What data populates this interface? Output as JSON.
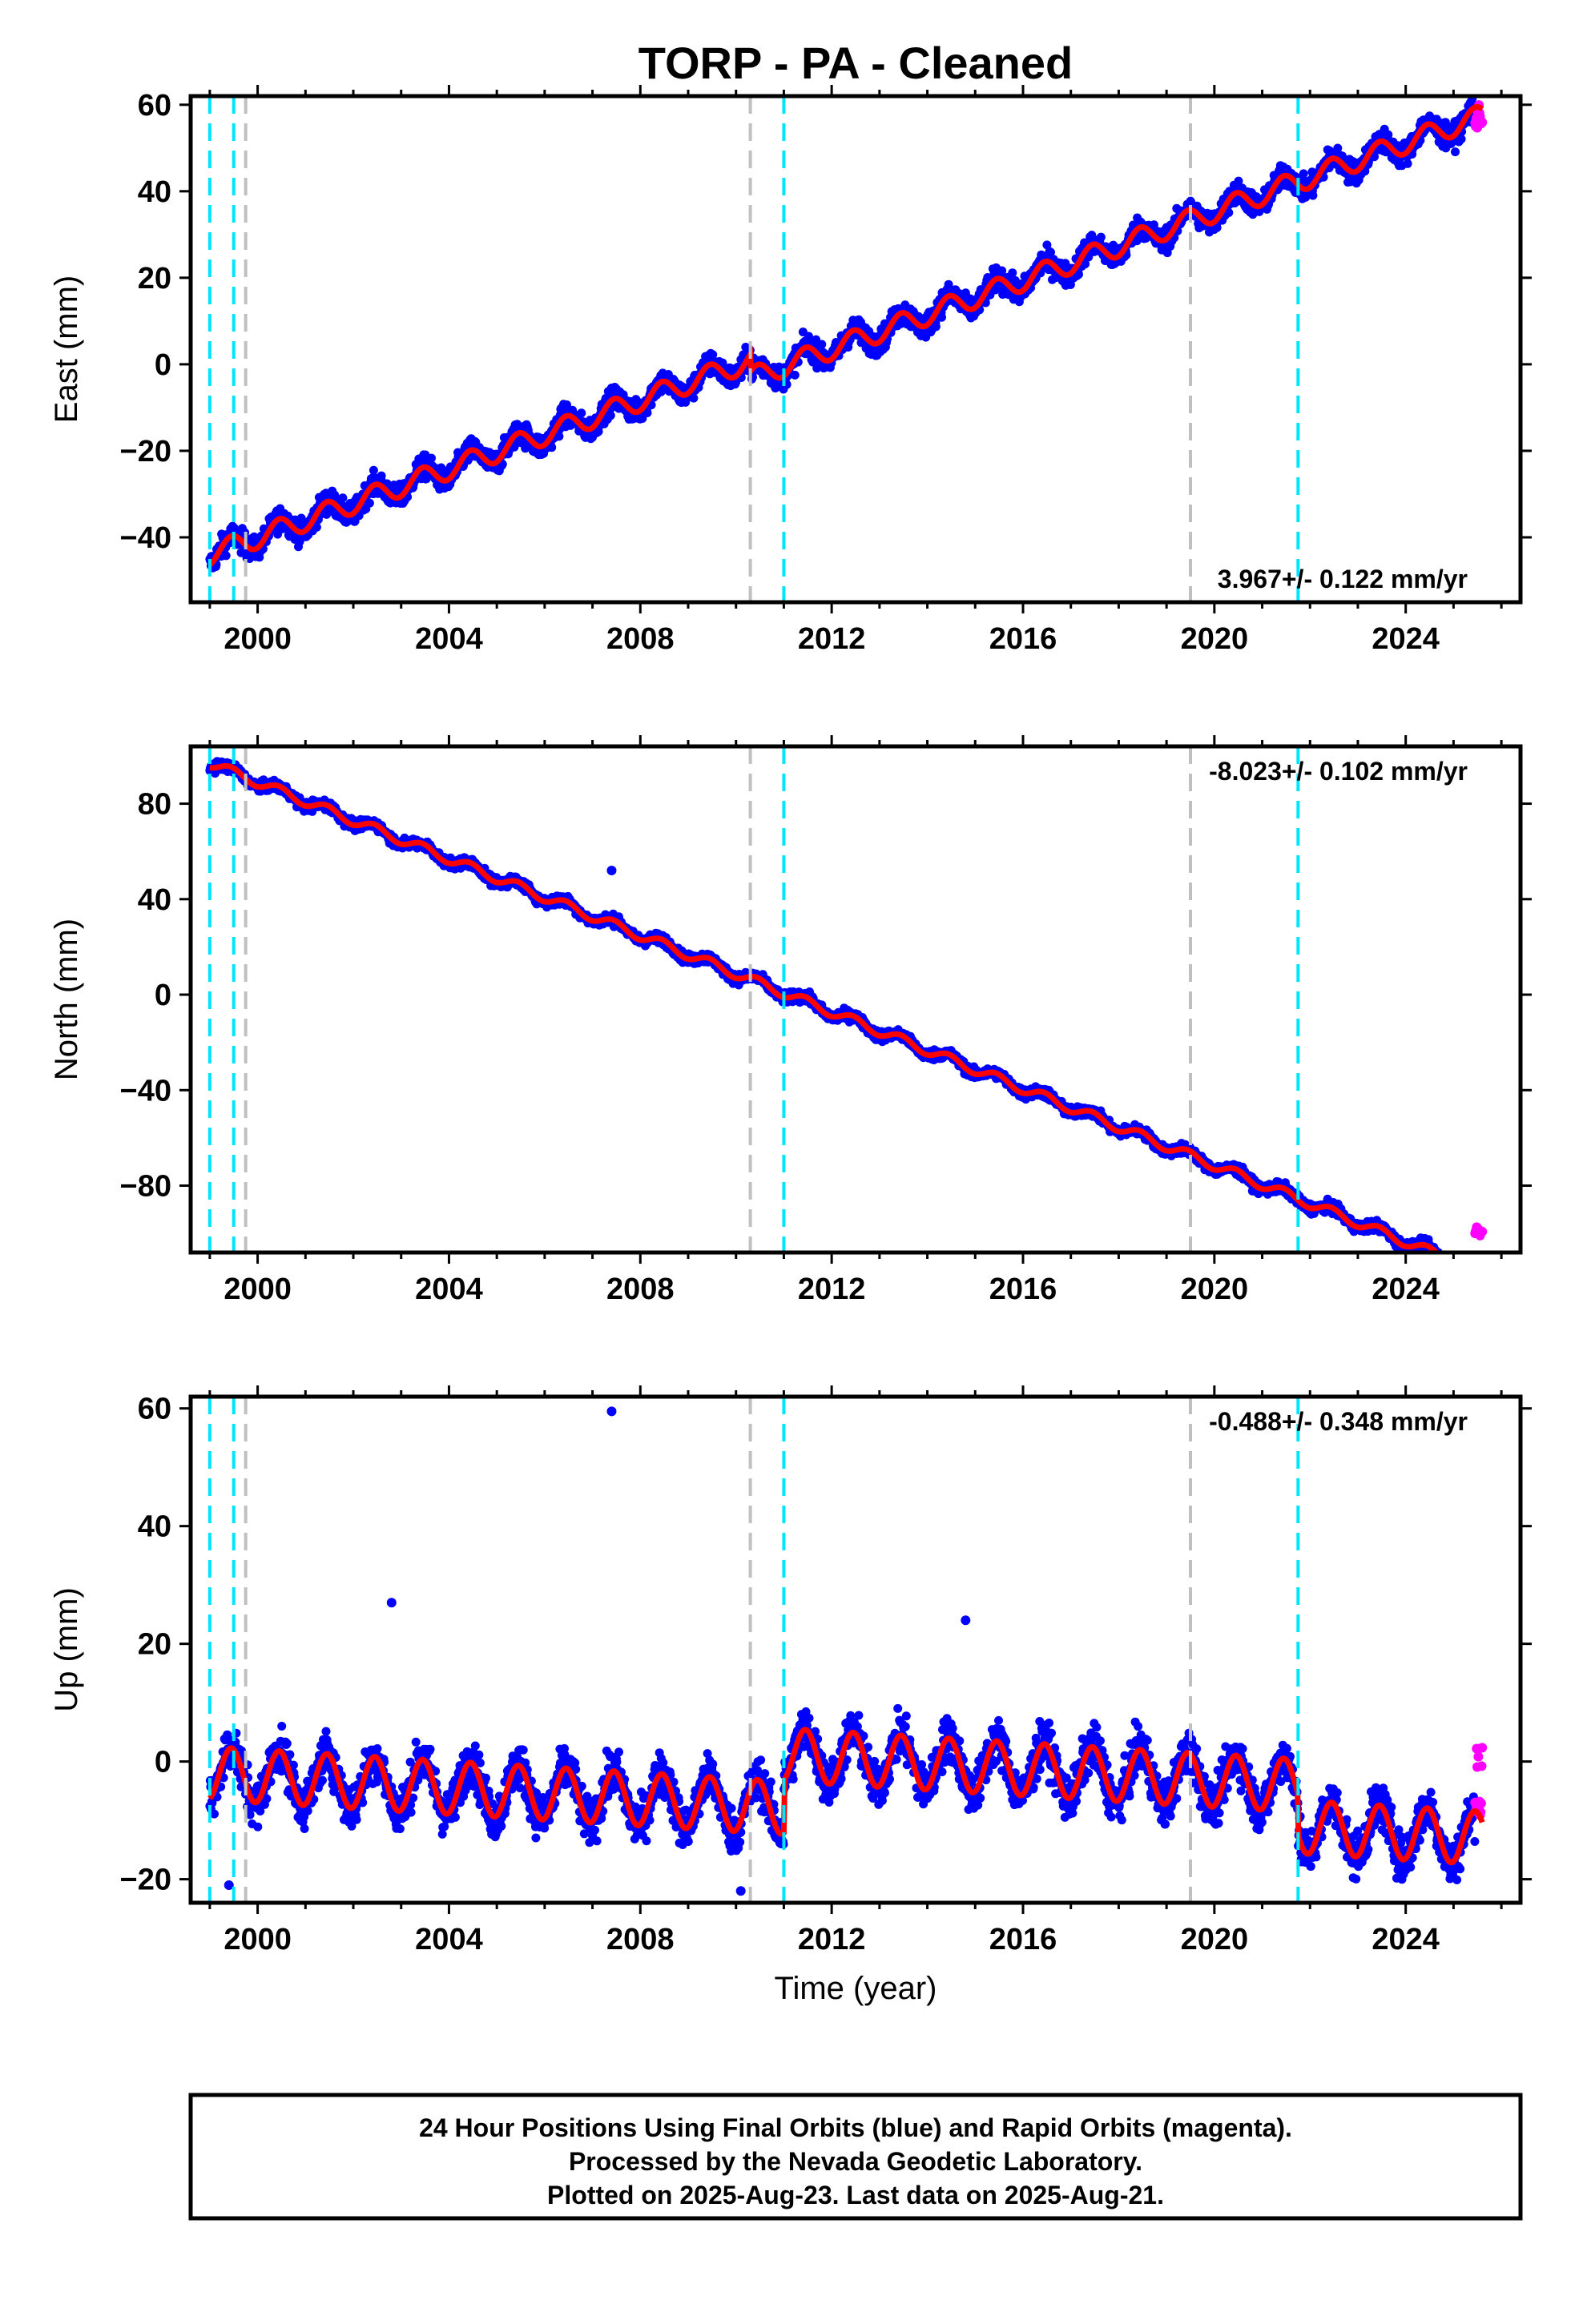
{
  "title": "TORP  - PA - Cleaned",
  "footer": {
    "line1": "24 Hour Positions Using Final Orbits (blue) and Rapid Orbits (magenta).",
    "line2": "Processed by the Nevada Geodetic Laboratory.",
    "line3": "Plotted on 2025-Aug-23. Last data on 2025-Aug-21."
  },
  "colors": {
    "final_orbits": "#0000ff",
    "rapid_orbits": "#ff00ff",
    "model": "#ff0000",
    "equipment_change": "#00e5ff",
    "other_event": "#c0c0c0"
  },
  "chart_data": [
    {
      "type": "scatter",
      "component": "east",
      "ylabel": "East (mm)",
      "xlabel": "",
      "xlim": [
        1998.6,
        2026.4
      ],
      "ylim": [
        -55,
        62
      ],
      "xticks": [
        2000,
        2004,
        2008,
        2012,
        2016,
        2020,
        2024
      ],
      "yticks": [
        -40,
        -20,
        0,
        20,
        40,
        60
      ],
      "rate_text": "3.967+/- 0.122 mm/yr",
      "rate_position": "bottom-right",
      "rate_mm_per_yr": 3.967,
      "start_value": -44,
      "seasonal_amplitude": 2.5,
      "scatter_spread": 3.2,
      "offsets": [
        {
          "year": 2010.3,
          "value": -4
        }
      ],
      "event_lines": {
        "cyan": [
          1999.0,
          1999.5,
          2011.0,
          2021.75
        ],
        "gray": [
          1999.75,
          2010.3,
          2019.5
        ]
      },
      "data_range": [
        1999.0,
        2025.6
      ],
      "rapid_range": [
        2025.45,
        2025.6
      ],
      "rapid_values": [
        54,
        60
      ],
      "outliers": []
    },
    {
      "type": "scatter",
      "component": "north",
      "ylabel": "North (mm)",
      "xlabel": "",
      "xlim": [
        1998.6,
        2026.4
      ],
      "ylim": [
        -108,
        104
      ],
      "xticks": [
        2000,
        2004,
        2008,
        2012,
        2016,
        2020,
        2024
      ],
      "yticks": [
        -80,
        -40,
        0,
        40,
        80
      ],
      "rate_text": "-8.023+/- 0.102 mm/yr",
      "rate_position": "top-right",
      "rate_mm_per_yr": -8.023,
      "start_value": 97,
      "seasonal_amplitude": 2.0,
      "scatter_spread": 2.6,
      "offsets": [],
      "event_lines": {
        "cyan": [
          1999.0,
          1999.5,
          2011.0,
          2021.75
        ],
        "gray": [
          1999.75,
          2010.3,
          2019.5
        ]
      },
      "data_range": [
        1999.0,
        2025.6
      ],
      "rapid_range": [
        2025.45,
        2025.6
      ],
      "rapid_values": [
        -101,
        -97
      ],
      "outliers": [
        {
          "x": 2007.4,
          "y": 52
        }
      ]
    },
    {
      "type": "scatter",
      "component": "up",
      "ylabel": "Up (mm)",
      "xlabel": "Time (year)",
      "xlim": [
        1998.6,
        2026.4
      ],
      "ylim": [
        -24,
        62
      ],
      "xticks": [
        2000,
        2004,
        2008,
        2012,
        2016,
        2020,
        2024
      ],
      "yticks": [
        -20,
        0,
        20,
        40,
        60
      ],
      "rate_text": "-0.488+/- 0.348 mm/yr",
      "rate_position": "top-right",
      "rate_mm_per_yr": -0.488,
      "start_value": -2,
      "seasonal_amplitude": 4.5,
      "scatter_spread": 4.5,
      "offsets": [
        {
          "year": 2011.0,
          "value": 9
        },
        {
          "year": 2021.75,
          "value": -7
        }
      ],
      "event_lines": {
        "cyan": [
          1999.0,
          1999.5,
          2011.0,
          2021.75
        ],
        "gray": [
          1999.75,
          2010.3,
          2019.5
        ]
      },
      "data_range": [
        1999.0,
        2025.6
      ],
      "rapid_range": [
        2025.45,
        2025.6
      ],
      "rapid_values": [
        -10,
        3
      ],
      "outliers": [
        {
          "x": 2007.4,
          "y": 59.5
        },
        {
          "x": 2002.8,
          "y": 27
        },
        {
          "x": 2014.8,
          "y": 24
        },
        {
          "x": 2010.1,
          "y": -22
        },
        {
          "x": 1999.4,
          "y": -21
        }
      ]
    }
  ]
}
